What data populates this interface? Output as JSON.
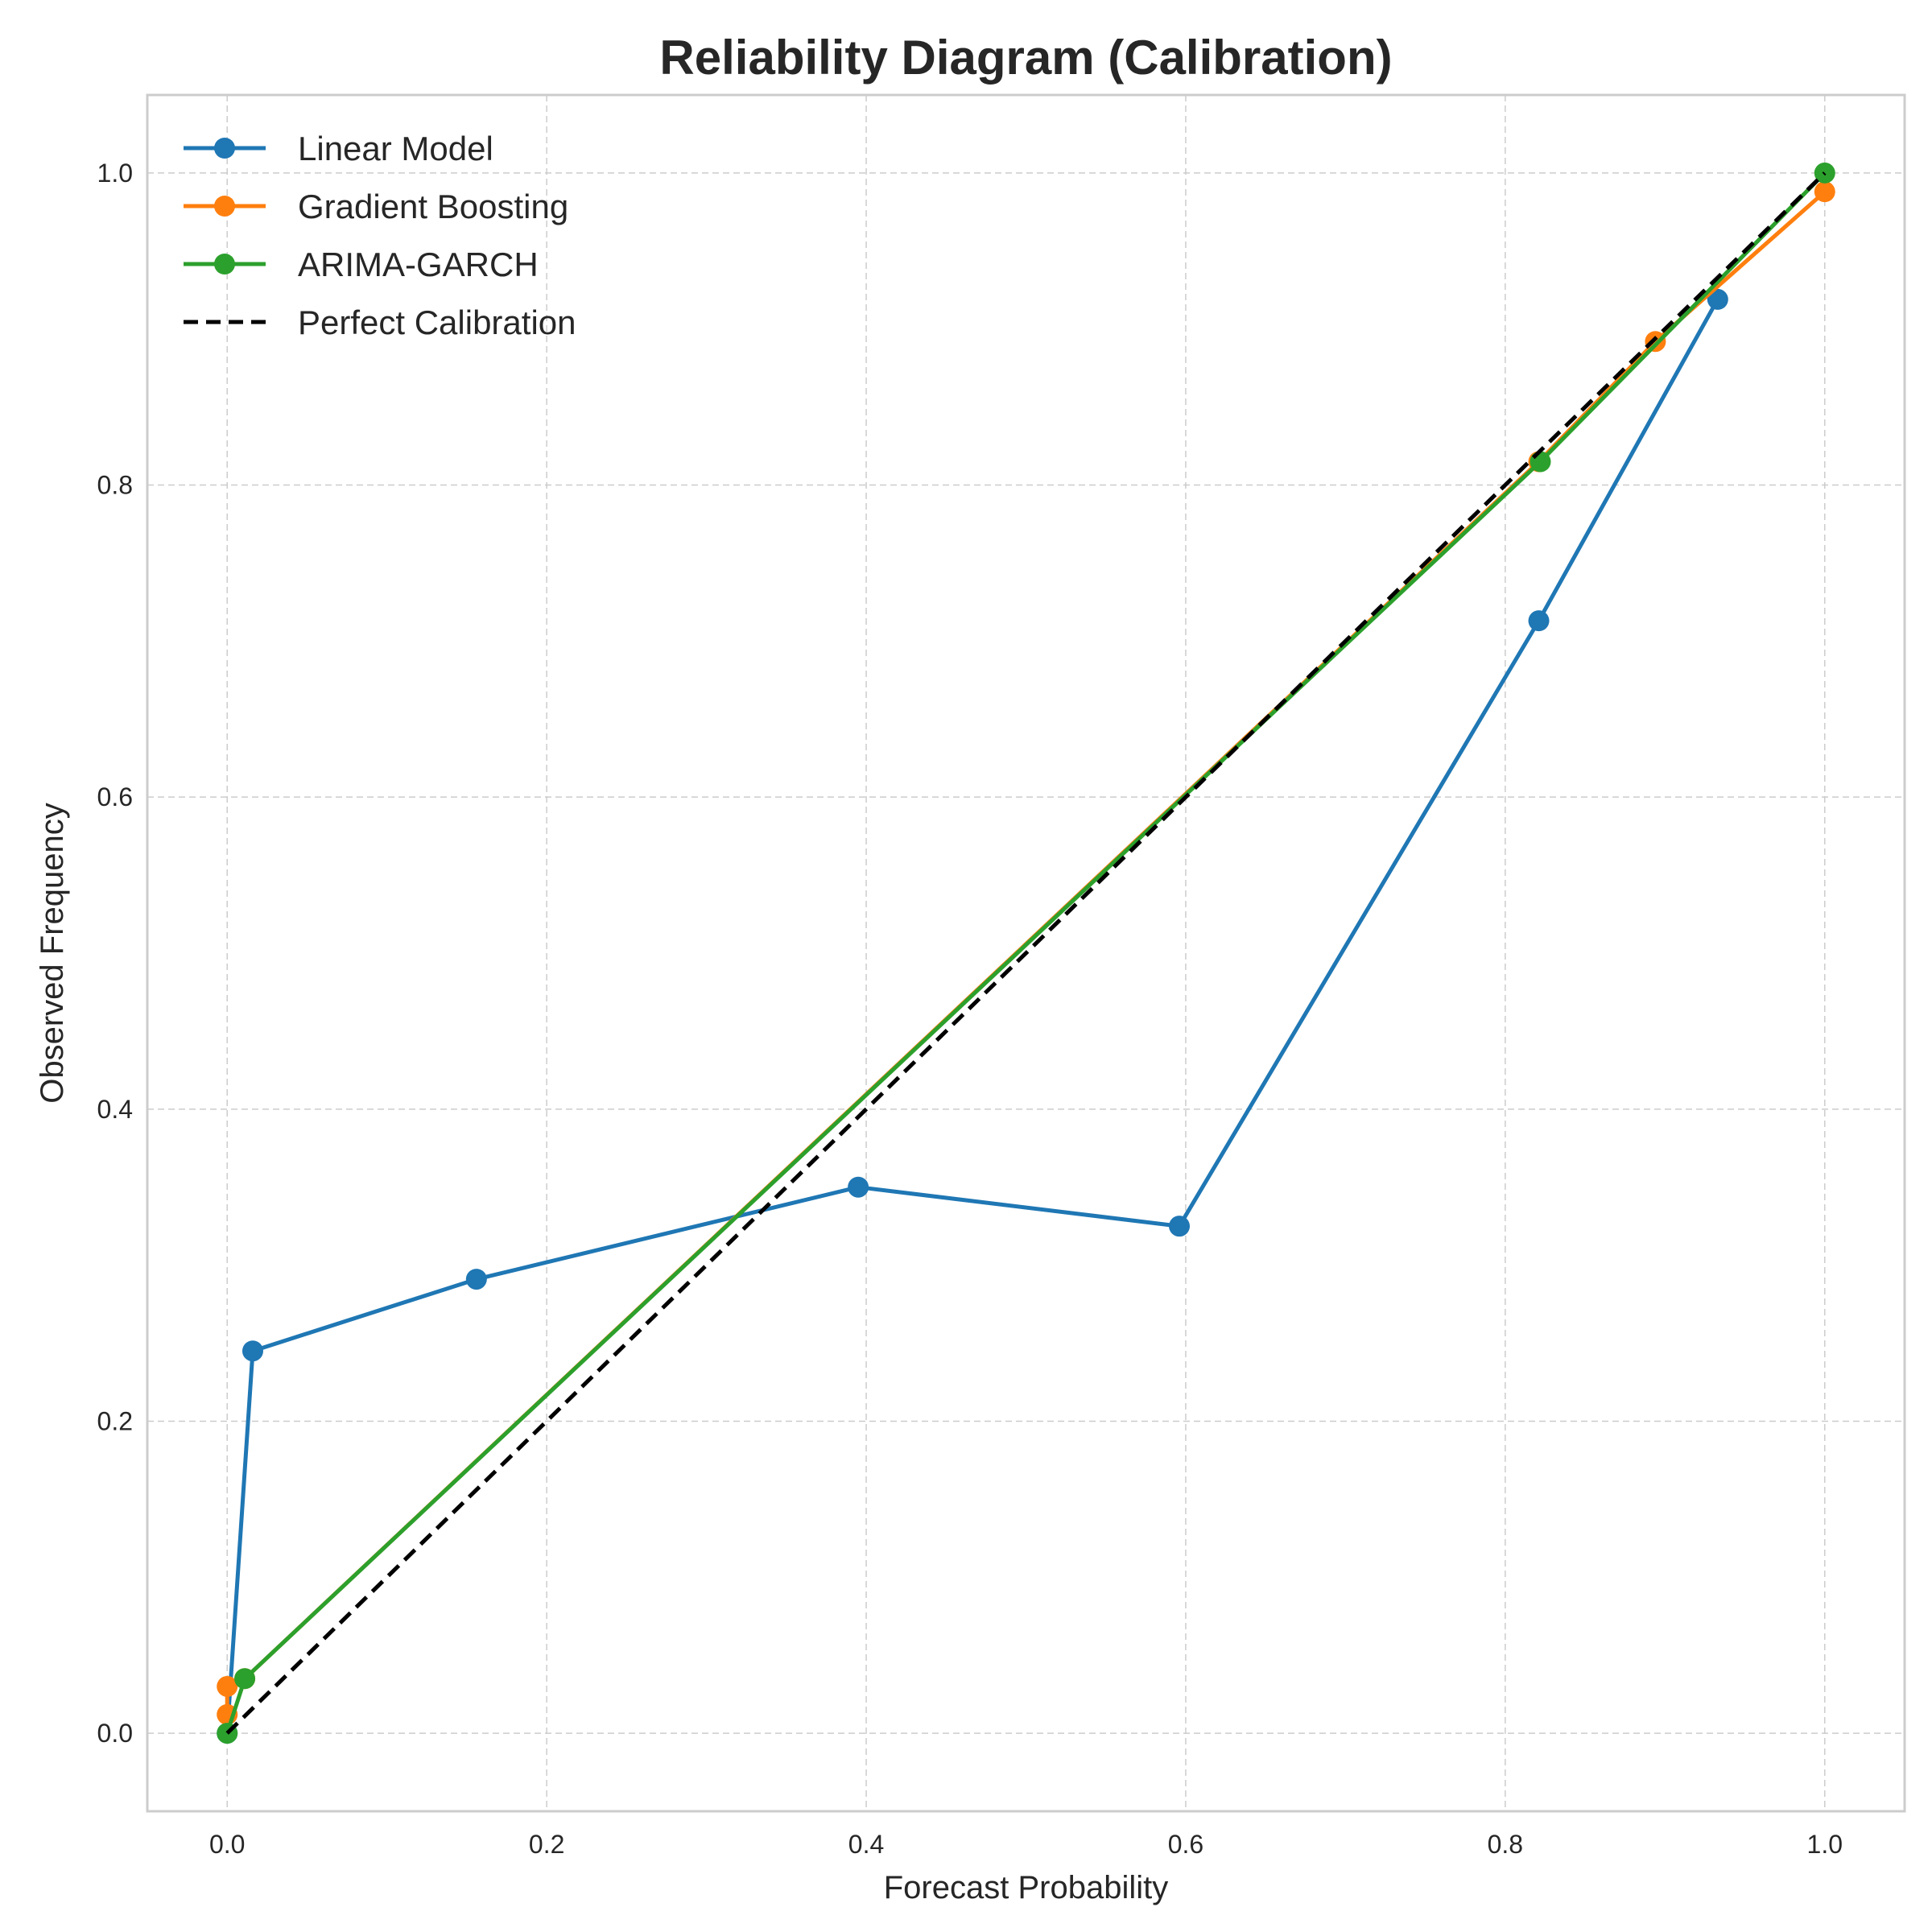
{
  "chart_data": {
    "type": "line",
    "title": "Reliability Diagram (Calibration)",
    "xlabel": "Forecast Probability",
    "ylabel": "Observed Frequency",
    "xlim": [
      -0.05,
      1.05
    ],
    "ylim": [
      -0.05,
      1.05
    ],
    "xticks": [
      0.0,
      0.2,
      0.4,
      0.6,
      0.8,
      1.0
    ],
    "yticks": [
      0.0,
      0.2,
      0.4,
      0.6,
      0.8,
      1.0
    ],
    "xtick_labels": [
      "0.0",
      "0.2",
      "0.4",
      "0.6",
      "0.8",
      "1.0"
    ],
    "ytick_labels": [
      "0.0",
      "0.2",
      "0.4",
      "0.6",
      "0.8",
      "1.0"
    ],
    "grid": true,
    "legend_position": "top-left",
    "series": [
      {
        "name": "Linear Model",
        "color": "#1f77b4",
        "marker": true,
        "dashed": false,
        "x": [
          0.0,
          0.016,
          0.156,
          0.395,
          0.596,
          0.821,
          0.933
        ],
        "y": [
          0.0,
          0.245,
          0.291,
          0.35,
          0.325,
          0.713,
          0.919
        ]
      },
      {
        "name": "Gradient Boosting",
        "color": "#ff7f0e",
        "marker": true,
        "dashed": false,
        "x": [
          0.0,
          0.0,
          0.011,
          0.821,
          0.894,
          1.0
        ],
        "y": [
          0.012,
          0.03,
          0.035,
          0.815,
          0.892,
          0.988
        ]
      },
      {
        "name": "ARIMA-GARCH",
        "color": "#2ca02c",
        "marker": true,
        "dashed": false,
        "x": [
          0.0,
          0.011,
          0.822,
          1.0
        ],
        "y": [
          0.0,
          0.035,
          0.815,
          1.0
        ]
      },
      {
        "name": "Perfect Calibration",
        "color": "#000000",
        "marker": false,
        "dashed": true,
        "x": [
          0.0,
          1.0
        ],
        "y": [
          0.0,
          1.0
        ]
      }
    ]
  }
}
